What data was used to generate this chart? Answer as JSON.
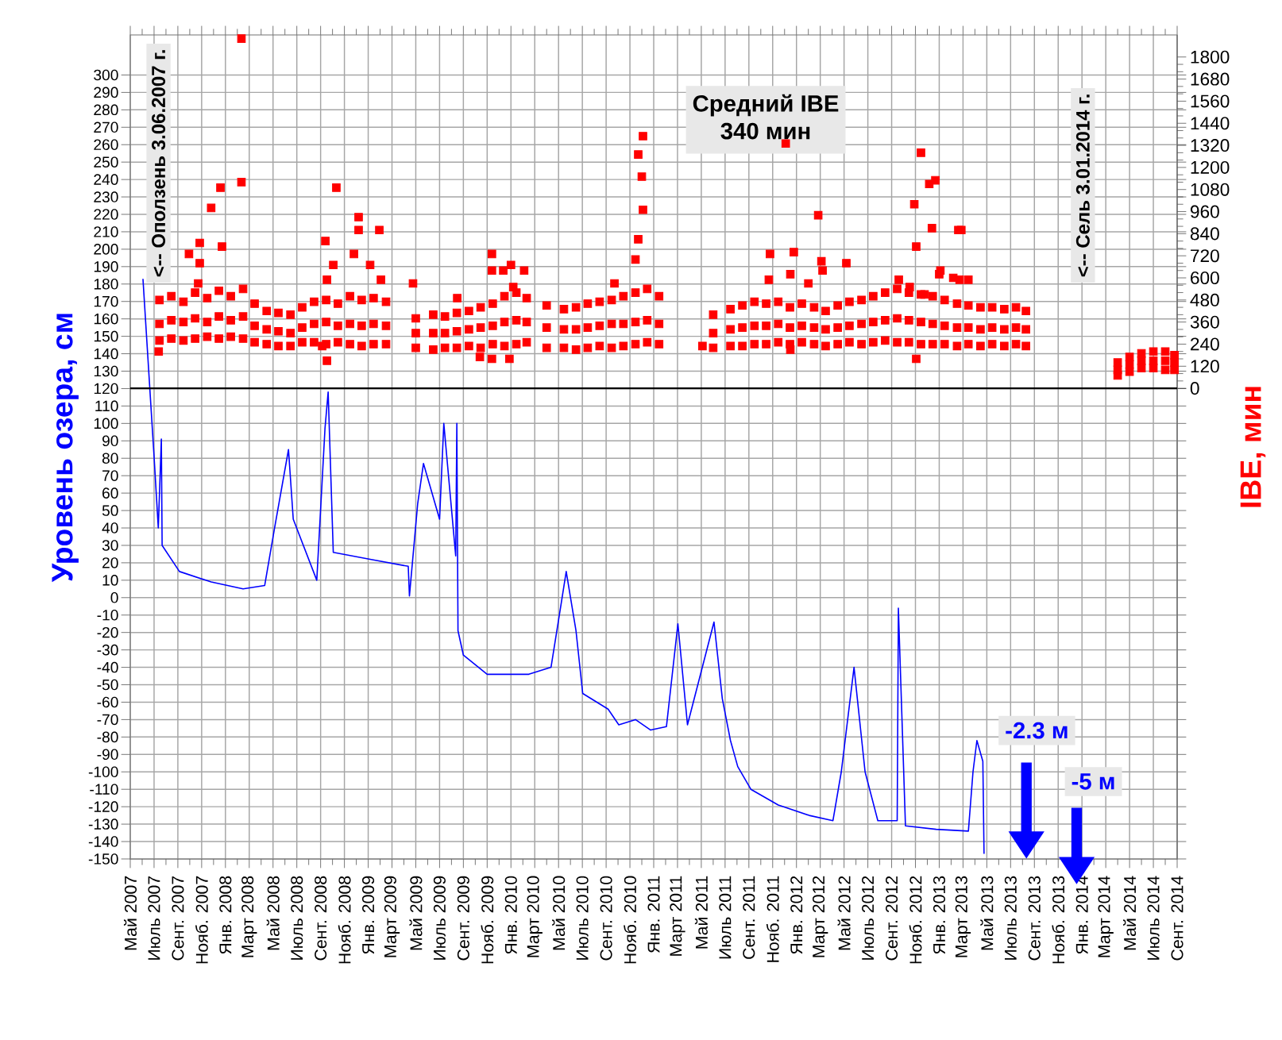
{
  "chart_data": {
    "type": "line",
    "ylabel": "Уровень озера, см",
    "y2label": "IBE, мин",
    "xlim": [
      "2007-05",
      "2014-09"
    ],
    "xticks": [
      {
        "value": "2007-05",
        "label": "Май 2007"
      },
      {
        "value": "2007-07",
        "label": "Июль 2007"
      },
      {
        "value": "2007-09",
        "label": "Сент. 2007"
      },
      {
        "value": "2007-11",
        "label": "Нояб. 2007"
      },
      {
        "value": "2008-01",
        "label": "Янв. 2008"
      },
      {
        "value": "2008-03",
        "label": "Март 2008"
      },
      {
        "value": "2008-05",
        "label": "Май 2008"
      },
      {
        "value": "2008-07",
        "label": "Июль 2008"
      },
      {
        "value": "2008-09",
        "label": "Сент. 2008"
      },
      {
        "value": "2008-11",
        "label": "Нояб. 2008"
      },
      {
        "value": "2009-01",
        "label": "Янв. 2009"
      },
      {
        "value": "2009-03",
        "label": "Март 2009"
      },
      {
        "value": "2009-05",
        "label": "Май 2009"
      },
      {
        "value": "2009-07",
        "label": "Июль 2009"
      },
      {
        "value": "2009-09",
        "label": "Сент. 2009"
      },
      {
        "value": "2009-11",
        "label": "Нояб. 2009"
      },
      {
        "value": "2010-01",
        "label": "Янв. 2010"
      },
      {
        "value": "2010-03",
        "label": "Март 2010"
      },
      {
        "value": "2010-05",
        "label": "Май 2010"
      },
      {
        "value": "2010-07",
        "label": "Июль 2010"
      },
      {
        "value": "2010-09",
        "label": "Сент. 2010"
      },
      {
        "value": "2010-11",
        "label": "Нояб. 2010"
      },
      {
        "value": "2011-01",
        "label": "Янв. 2011"
      },
      {
        "value": "2011-03",
        "label": "Март 2011"
      },
      {
        "value": "2011-05",
        "label": "Май 2011"
      },
      {
        "value": "2011-07",
        "label": "Июль 2011"
      },
      {
        "value": "2011-09",
        "label": "Сент. 2011"
      },
      {
        "value": "2011-11",
        "label": "Нояб. 2011"
      },
      {
        "value": "2012-01",
        "label": "Янв. 2012"
      },
      {
        "value": "2012-03",
        "label": "Март 2012"
      },
      {
        "value": "2012-05",
        "label": "Май 2012"
      },
      {
        "value": "2012-07",
        "label": "Июль 2012"
      },
      {
        "value": "2012-09",
        "label": "Сент. 2012"
      },
      {
        "value": "2012-11",
        "label": "Нояб. 2012"
      },
      {
        "value": "2013-01",
        "label": "Янв. 2013"
      },
      {
        "value": "2013-03",
        "label": "Март 2013"
      },
      {
        "value": "2013-05",
        "label": "Май 2013"
      },
      {
        "value": "2013-07",
        "label": "Июль 2013"
      },
      {
        "value": "2013-09",
        "label": "Сент. 2013"
      },
      {
        "value": "2013-11",
        "label": "Нояб. 2013"
      },
      {
        "value": "2014-01",
        "label": "Янв. 2014"
      },
      {
        "value": "2014-03",
        "label": "Март 2014"
      },
      {
        "value": "2014-05",
        "label": "Май 2014"
      },
      {
        "value": "2014-07",
        "label": "Июль 2014"
      },
      {
        "value": "2014-09",
        "label": "Сент. 2014"
      }
    ],
    "ylim": [
      -150,
      323
    ],
    "yticks": [
      -150,
      -140,
      -130,
      -120,
      -110,
      -100,
      -90,
      -80,
      -70,
      -60,
      -50,
      -40,
      -30,
      -20,
      -10,
      0,
      10,
      20,
      30,
      40,
      50,
      60,
      70,
      80,
      90,
      100,
      110,
      120,
      130,
      140,
      150,
      160,
      170,
      180,
      190,
      200,
      210,
      220,
      230,
      240,
      250,
      260,
      270,
      280,
      290,
      300
    ],
    "y2lim": [
      -2557,
      1920
    ],
    "y2ticks": [
      0,
      120,
      240,
      360,
      480,
      600,
      720,
      840,
      960,
      1080,
      1200,
      1320,
      1440,
      1560,
      1680,
      1800
    ],
    "grid": true,
    "ref_lines": [
      {
        "axis": "y2",
        "value": 0,
        "color": "#000000"
      }
    ],
    "annotations": [
      "<-- Оползень 3.06.2007 г.",
      "Средний IBE",
      "340 мин",
      "<-- Сель 3.01.2014 г.",
      "-2.3 м",
      "-5 м"
    ],
    "series": [
      {
        "color": "#0000ff",
        "line_style": "solid",
        "x": [
          "2007-06-03",
          "2007-07-01",
          "2007-07-12",
          "2007-07-20",
          "2007-07-22",
          "2007-09-05",
          "2007-11-25",
          "2008-02-15",
          "2008-04-10",
          "2008-05-05",
          "2008-06-10",
          "2008-06-22",
          "2008-08-22",
          "2008-09-12",
          "2008-09-20",
          "2008-10-03",
          "2009-01-06",
          "2009-04-12",
          "2009-04-15",
          "2009-05-06",
          "2009-05-21",
          "2009-07-01",
          "2009-07-12",
          "2009-08-12",
          "2009-08-15",
          "2009-08-18",
          "2009-09-01",
          "2009-11-01",
          "2010-02-15",
          "2010-04-12",
          "2010-05-06",
          "2010-05-21",
          "2010-06-15",
          "2010-07-02",
          "2010-09-06",
          "2010-10-03",
          "2010-11-15",
          "2010-12-24",
          "2011-02-03",
          "2011-03-02",
          "2011-03-27",
          "2011-06-03",
          "2011-06-24",
          "2011-07-15",
          "2011-08-03",
          "2011-09-06",
          "2011-11-15",
          "2012-02-03",
          "2012-04-03",
          "2012-04-24",
          "2012-05-27",
          "2012-06-24",
          "2012-07-27",
          "2012-09-15",
          "2012-09-18",
          "2012-10-06",
          "2012-12-24",
          "2013-03-15",
          "2013-03-27",
          "2013-04-06",
          "2013-04-21",
          "2013-04-24"
        ],
        "values": [
          183,
          81,
          40,
          91,
          30,
          15,
          9,
          5,
          7,
          40,
          85,
          45,
          10,
          97,
          118,
          26,
          22,
          18,
          1,
          54,
          77,
          45,
          100,
          24,
          100,
          -19,
          -33,
          -44,
          -44,
          -40,
          -6,
          15,
          -19,
          -55,
          -64,
          -73,
          -70,
          -76,
          -74,
          -15,
          -73,
          -14,
          -58,
          -82,
          -97,
          -110,
          -119,
          -125,
          -128,
          -100,
          -40,
          -100,
          -128,
          -128,
          -6,
          -131,
          -133,
          -134,
          -100,
          -82,
          -94,
          -147
        ]
      },
      {
        "type": "scatter",
        "axis": "y2",
        "color": "#ff0000",
        "marker": "square",
        "x": [
          "2007-07-15",
          "2007-07-15",
          "2007-07-15",
          "2007-08-15",
          "2007-08-15",
          "2007-08-15",
          "2007-09-15",
          "2007-09-15",
          "2007-09-15",
          "2007-10-15",
          "2007-10-15",
          "2007-10-15",
          "2007-11-15",
          "2007-11-15",
          "2007-11-15",
          "2007-12-15",
          "2007-12-15",
          "2007-12-15",
          "2008-01-15",
          "2008-01-15",
          "2008-01-15",
          "2008-02-15",
          "2008-02-15",
          "2008-02-15",
          "2008-03-15",
          "2008-03-15",
          "2008-03-15",
          "2008-04-15",
          "2008-04-15",
          "2008-04-15",
          "2008-05-15",
          "2008-05-15",
          "2008-05-15",
          "2008-06-15",
          "2008-06-15",
          "2008-06-15",
          "2008-07-15",
          "2008-07-15",
          "2008-07-15",
          "2008-08-15",
          "2008-08-15",
          "2008-08-15",
          "2008-09-15",
          "2008-09-15",
          "2008-09-15",
          "2008-10-15",
          "2008-10-15",
          "2008-10-15",
          "2008-11-15",
          "2008-11-15",
          "2008-11-15",
          "2008-12-15",
          "2008-12-15",
          "2008-12-15",
          "2009-01-15",
          "2009-01-15",
          "2009-01-15",
          "2009-02-15",
          "2009-02-15",
          "2009-02-15",
          "2009-05-01",
          "2009-05-01",
          "2009-05-01",
          "2009-06-15",
          "2009-06-15",
          "2009-06-15",
          "2009-07-15",
          "2009-07-15",
          "2009-07-15",
          "2009-08-15",
          "2009-08-15",
          "2009-08-15",
          "2009-09-15",
          "2009-09-15",
          "2009-09-15",
          "2009-10-15",
          "2009-10-15",
          "2009-10-15",
          "2009-11-15",
          "2009-11-15",
          "2009-11-15",
          "2009-12-15",
          "2009-12-15",
          "2009-12-15",
          "2010-01-15",
          "2010-01-15",
          "2010-01-15",
          "2010-02-10",
          "2010-02-10",
          "2010-02-10",
          "2010-04-01",
          "2010-04-01",
          "2010-04-01",
          "2010-05-15",
          "2010-05-15",
          "2010-05-15",
          "2010-06-15",
          "2010-06-15",
          "2010-06-15",
          "2010-07-15",
          "2010-07-15",
          "2010-07-15",
          "2010-08-15",
          "2010-08-15",
          "2010-08-15",
          "2010-09-15",
          "2010-09-15",
          "2010-09-15",
          "2010-10-15",
          "2010-10-15",
          "2010-10-15",
          "2010-11-15",
          "2010-11-15",
          "2010-11-15",
          "2010-12-15",
          "2010-12-15",
          "2010-12-15",
          "2011-01-15",
          "2011-01-15",
          "2011-01-15",
          "2011-06-01",
          "2011-06-01",
          "2011-06-01",
          "2011-07-15",
          "2011-07-15",
          "2011-07-15",
          "2011-08-15",
          "2011-08-15",
          "2011-08-15",
          "2011-09-15",
          "2011-09-15",
          "2011-09-15",
          "2011-10-15",
          "2011-10-15",
          "2011-10-15",
          "2011-11-15",
          "2011-11-15",
          "2011-11-15",
          "2011-12-15",
          "2011-12-15",
          "2011-12-15",
          "2012-01-15",
          "2012-01-15",
          "2012-01-15",
          "2012-02-15",
          "2012-02-15",
          "2012-02-15",
          "2012-03-15",
          "2012-03-15",
          "2012-03-15",
          "2012-04-15",
          "2012-04-15",
          "2012-04-15",
          "2012-05-15",
          "2012-05-15",
          "2012-05-15",
          "2012-06-15",
          "2012-06-15",
          "2012-06-15",
          "2012-07-15",
          "2012-07-15",
          "2012-07-15",
          "2012-08-15",
          "2012-08-15",
          "2012-08-15",
          "2012-09-15",
          "2012-09-15",
          "2012-09-15",
          "2012-10-15",
          "2012-10-15",
          "2012-10-15",
          "2012-11-15",
          "2012-11-15",
          "2012-11-15",
          "2012-12-15",
          "2012-12-15",
          "2012-12-15",
          "2013-01-15",
          "2013-01-15",
          "2013-01-15",
          "2013-02-15",
          "2013-02-15",
          "2013-02-15",
          "2013-03-15",
          "2013-03-15",
          "2013-03-15",
          "2013-04-15",
          "2013-04-15",
          "2013-04-15",
          "2013-05-15",
          "2013-05-15",
          "2013-05-15",
          "2013-06-15",
          "2013-06-15",
          "2013-06-15",
          "2013-07-15",
          "2013-07-15",
          "2013-07-15",
          "2013-08-10",
          "2013-08-10",
          "2013-08-10",
          "2014-04-01",
          "2014-04-01",
          "2014-04-01",
          "2014-05-01",
          "2014-05-01",
          "2014-05-01",
          "2014-06-01",
          "2014-06-01",
          "2014-06-01",
          "2014-07-01",
          "2014-07-01",
          "2014-07-01",
          "2014-08-01",
          "2014-08-01",
          "2014-08-01",
          "2014-08-25",
          "2014-08-25",
          "2014-08-25",
          "2008-02-11",
          "2008-02-11",
          "2007-09-29",
          "2007-10-27",
          "2007-10-27",
          "2007-11-25",
          "2007-12-19",
          "2007-12-23",
          "2007-10-23",
          "2007-07-13",
          "2008-10-11",
          "2008-09-13",
          "2008-09-17",
          "2008-10-03",
          "2008-12-07",
          "2008-12-07",
          "2008-11-25",
          "2009-01-30",
          "2009-01-06",
          "2009-02-03",
          "2008-09-05",
          "2008-09-17",
          "2009-04-24",
          "2009-08-16",
          "2009-11-13",
          "2009-11-13",
          "2009-12-12",
          "2010-01-01",
          "2010-02-04",
          "2010-01-07",
          "2009-10-13",
          "2009-11-13",
          "2009-12-28",
          "2010-09-22",
          "2010-11-15",
          "2010-11-22",
          "2010-12-01",
          "2010-11-22",
          "2010-12-04",
          "2010-12-04",
          "2011-12-04",
          "2011-10-22",
          "2011-10-25",
          "2011-12-16",
          "2011-12-25",
          "2012-02-01",
          "2012-02-25",
          "2012-03-04",
          "2012-05-07",
          "2012-03-07",
          "2011-05-04",
          "2011-12-16",
          "2012-11-15",
          "2012-10-29",
          "2012-12-06",
          "2012-12-22",
          "2012-12-13",
          "2012-11-03",
          "2013-01-04",
          "2013-01-01",
          "2013-02-06",
          "2013-02-18",
          "2013-02-25",
          "2013-02-21",
          "2013-03-15",
          "2012-11-03",
          "2012-09-19",
          "2012-10-17",
          "2012-11-24"
        ],
        "values": [
          480,
          350,
          260,
          500,
          370,
          270,
          470,
          360,
          260,
          520,
          380,
          270,
          490,
          360,
          280,
          530,
          390,
          270,
          500,
          370,
          280,
          540,
          390,
          270,
          460,
          340,
          250,
          420,
          320,
          240,
          410,
          310,
          230,
          400,
          300,
          230,
          440,
          330,
          250,
          470,
          350,
          250,
          480,
          360,
          240,
          460,
          340,
          250,
          500,
          350,
          240,
          480,
          340,
          230,
          490,
          350,
          240,
          470,
          340,
          240,
          380,
          300,
          220,
          400,
          300,
          210,
          390,
          300,
          220,
          410,
          310,
          220,
          420,
          320,
          230,
          440,
          330,
          220,
          460,
          340,
          240,
          500,
          360,
          230,
          520,
          370,
          240,
          490,
          360,
          250,
          450,
          330,
          220,
          430,
          320,
          220,
          440,
          320,
          210,
          460,
          330,
          220,
          470,
          340,
          230,
          480,
          350,
          220,
          500,
          350,
          230,
          520,
          360,
          240,
          540,
          370,
          250,
          500,
          350,
          240,
          400,
          300,
          220,
          430,
          320,
          230,
          450,
          330,
          230,
          470,
          340,
          240,
          460,
          340,
          240,
          470,
          350,
          250,
          440,
          330,
          240,
          460,
          340,
          250,
          440,
          330,
          240,
          420,
          320,
          230,
          450,
          330,
          240,
          470,
          340,
          250,
          480,
          350,
          240,
          500,
          360,
          250,
          520,
          370,
          260,
          540,
          380,
          250,
          520,
          370,
          250,
          510,
          360,
          240,
          500,
          350,
          240,
          480,
          340,
          240,
          460,
          330,
          230,
          450,
          330,
          240,
          440,
          320,
          230,
          440,
          330,
          240,
          430,
          320,
          230,
          440,
          330,
          240,
          420,
          320,
          230,
          140,
          100,
          70,
          170,
          130,
          90,
          190,
          150,
          110,
          200,
          150,
          110,
          200,
          150,
          100,
          180,
          140,
          100,
          1900,
          1120,
          730,
          790,
          680,
          980,
          1090,
          770,
          570,
          200,
          1090,
          800,
          590,
          670,
          860,
          930,
          730,
          860,
          670,
          590,
          230,
          150,
          570,
          490,
          730,
          640,
          640,
          670,
          640,
          550,
          170,
          160,
          160,
          570,
          700,
          810,
          1150,
          1270,
          1370,
          970,
          1330,
          590,
          730,
          620,
          740,
          570,
          940,
          690,
          680,
          640,
          230,
          210,
          1280,
          1000,
          1110,
          1130,
          870,
          770,
          640,
          620,
          600,
          860,
          860,
          590,
          590,
          160,
          590,
          550,
          510
        ]
      }
    ]
  }
}
